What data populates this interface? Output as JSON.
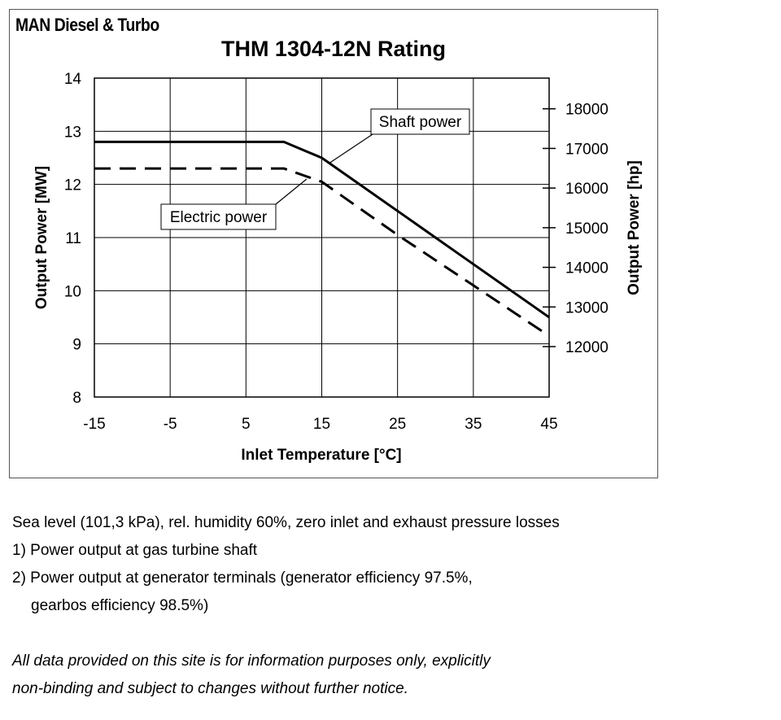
{
  "brand": "MAN Diesel & Turbo",
  "chart_data": {
    "type": "line",
    "title": "THM 1304-12N Rating",
    "xlabel": "Inlet Temperature [°C]",
    "ylabel": "Output Power [MW]",
    "y2label": "Output Power [hp]",
    "xlim": [
      -15,
      45
    ],
    "ylim": [
      8,
      14
    ],
    "x_ticks": [
      -15,
      -5,
      5,
      15,
      25,
      35,
      45
    ],
    "y_ticks": [
      8,
      9,
      10,
      11,
      12,
      13,
      14
    ],
    "y2_ticks": [
      12000,
      13000,
      14000,
      15000,
      16000,
      17000,
      18000
    ],
    "hp_per_mw": 1341.02,
    "grid": true,
    "series": [
      {
        "name": "Shaft power",
        "style": "solid",
        "x": [
          -15,
          10,
          15,
          25,
          35,
          45
        ],
        "y": [
          12.8,
          12.8,
          12.5,
          11.5,
          10.5,
          9.5
        ]
      },
      {
        "name": "Electric power",
        "style": "dashed",
        "x": [
          -15,
          10,
          15,
          25,
          35,
          45
        ],
        "y": [
          12.3,
          12.3,
          12.05,
          11.05,
          10.1,
          9.15
        ]
      }
    ],
    "annotations": [
      {
        "text": "Shaft power",
        "series": 0,
        "point_x": 16,
        "point_y": 12.4
      },
      {
        "text": "Electric power",
        "series": 1,
        "point_x": 13,
        "point_y": 12.1
      }
    ]
  },
  "notes": [
    "Sea level (101,3 kPa), rel. humidity 60%, zero inlet and exhaust pressure losses",
    "1) Power output at gas turbine shaft",
    "2) Power output at generator terminals (generator efficiency 97.5%,",
    "gearbos efficiency 98.5%)"
  ],
  "disclaimer": [
    "All data provided on this site is for information purposes only, explicitly",
    "non-binding and subject to changes without further notice."
  ]
}
